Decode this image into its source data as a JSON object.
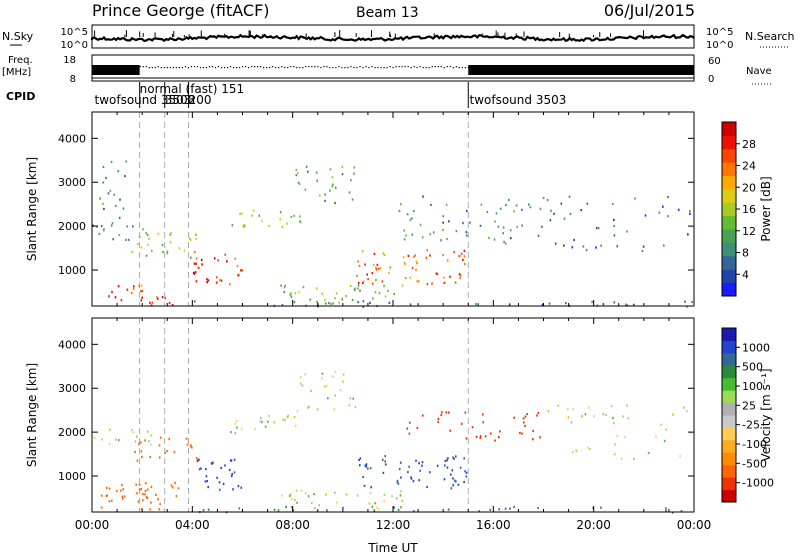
{
  "header": {
    "station": "Prince George (fitACF)",
    "beam": "Beam 13",
    "date": "06/Jul/2015"
  },
  "top_panels": {
    "nsky_label": "N.Sky",
    "nsearch_label": "N.Search",
    "noise_ticks": [
      "10^5",
      "10^0"
    ],
    "noise_ticks_right": [
      "10^5",
      "10^0"
    ],
    "freq_label": "Freq.",
    "freq_unit": "[MHz]",
    "freq_ticks": [
      "18",
      "8"
    ],
    "nave_label": "Nave",
    "nave_ticks": [
      "60",
      "0"
    ],
    "cpid_label": "CPID",
    "cpid_entries": [
      {
        "label": "twofsound 3503",
        "start_h": 0.1,
        "row": 2
      },
      {
        "label": "normal (fast) 151",
        "start_h": 1.9,
        "row": 1
      },
      {
        "label": "3503",
        "start_h": 2.9,
        "row": 2
      },
      {
        "label": "200",
        "start_h": 3.85,
        "row": 2
      },
      {
        "label": "twofsound 3503",
        "start_h": 15.05,
        "row": 2
      }
    ],
    "mode_changes_h": [
      1.9,
      2.9,
      3.85,
      15.0
    ]
  },
  "colors": {
    "power_scale": [
      "#1a1aff",
      "#2244aa",
      "#336699",
      "#3d8f7a",
      "#4aa055",
      "#66bb33",
      "#aacc22",
      "#ddcc11",
      "#ffaa00",
      "#ff7700",
      "#ff4400",
      "#ee1100",
      "#cc0000"
    ],
    "velocity_scale": [
      "#cc0000",
      "#ee3300",
      "#ff6600",
      "#ff8c00",
      "#ffaa22",
      "#ffcc55",
      "#c8c8c8",
      "#b0b0b0",
      "#99dd55",
      "#44bb33",
      "#2d8a3a",
      "#336699",
      "#2244cc",
      "#1a1ab0"
    ]
  },
  "chart_data": [
    {
      "type": "heatmap",
      "parameter": "power",
      "xlabel": "",
      "ylabel": "Slant Range [km]",
      "xlim_hours": [
        0,
        24
      ],
      "ylim_km": [
        180,
        4600
      ],
      "yticks": [
        "1000",
        "2000",
        "3000",
        "4000"
      ],
      "colorbar_label": "Power [dB]",
      "colorbar_ticks": [
        "4",
        "8",
        "12",
        "16",
        "20",
        "24",
        "28"
      ],
      "colorbar_range": [
        0,
        30
      ],
      "scatter_regions": [
        {
          "t0": 0.0,
          "t1": 2.4,
          "r0": 1700,
          "r1": 2100,
          "power": 9,
          "density": 0.7
        },
        {
          "t0": 0.0,
          "t1": 1.5,
          "r0": 2200,
          "r1": 3500,
          "power": 7,
          "density": 0.35
        },
        {
          "t0": 0.3,
          "t1": 2.0,
          "r0": 280,
          "r1": 700,
          "power": 26,
          "density": 0.8
        },
        {
          "t0": 1.5,
          "t1": 3.5,
          "r0": 200,
          "r1": 420,
          "power": 28,
          "density": 0.9
        },
        {
          "t0": 1.5,
          "t1": 4.2,
          "r0": 1300,
          "r1": 1900,
          "power": 15,
          "density": 0.6
        },
        {
          "t0": 4.0,
          "t1": 6.0,
          "r0": 700,
          "r1": 1500,
          "power": 27,
          "density": 0.75
        },
        {
          "t0": 5.5,
          "t1": 8.5,
          "r0": 2000,
          "r1": 2400,
          "power": 14,
          "density": 0.7
        },
        {
          "t0": 8.0,
          "t1": 10.5,
          "r0": 2500,
          "r1": 3400,
          "power": 10,
          "density": 0.5
        },
        {
          "t0": 7.5,
          "t1": 12.5,
          "r0": 250,
          "r1": 700,
          "power": 12,
          "density": 0.65
        },
        {
          "t0": 10.5,
          "t1": 15.0,
          "r0": 700,
          "r1": 1500,
          "power": 24,
          "density": 0.7
        },
        {
          "t0": 12.0,
          "t1": 18.0,
          "r0": 1600,
          "r1": 2700,
          "power": 8,
          "density": 0.35
        },
        {
          "t0": 4.0,
          "t1": 24.0,
          "r0": 190,
          "r1": 320,
          "power": 6,
          "density": 0.5
        },
        {
          "t0": 18.0,
          "t1": 24.0,
          "r0": 1400,
          "r1": 2700,
          "power": 5,
          "density": 0.2
        }
      ]
    },
    {
      "type": "heatmap",
      "parameter": "velocity",
      "xlabel": "Time UT",
      "ylabel": "Slant Range [km]",
      "xlim_hours": [
        0,
        24
      ],
      "ylim_km": [
        180,
        4600
      ],
      "xticks": [
        "00:00",
        "04:00",
        "08:00",
        "12:00",
        "16:00",
        "20:00",
        "00:00"
      ],
      "yticks": [
        "1000",
        "2000",
        "3000",
        "4000"
      ],
      "colorbar_label": "Velocity [m s⁻¹]",
      "colorbar_ticks": [
        "1000",
        "500",
        "100",
        "25",
        "-25",
        "-100",
        "-500",
        "-1000"
      ],
      "scatter_regions": [
        {
          "t0": 0.0,
          "t1": 2.4,
          "r0": 1700,
          "r1": 2100,
          "vel": 0,
          "density": 0.6
        },
        {
          "t0": 0.3,
          "t1": 3.5,
          "r0": 250,
          "r1": 900,
          "vel": -150,
          "density": 0.8
        },
        {
          "t0": 1.5,
          "t1": 4.2,
          "r0": 1300,
          "r1": 1900,
          "vel": -120,
          "density": 0.55
        },
        {
          "t0": 4.0,
          "t1": 6.0,
          "r0": 700,
          "r1": 1500,
          "vel": 300,
          "density": 0.7
        },
        {
          "t0": 5.5,
          "t1": 8.5,
          "r0": 2000,
          "r1": 2400,
          "vel": 0,
          "density": 0.65
        },
        {
          "t0": 8.0,
          "t1": 10.5,
          "r0": 2500,
          "r1": 3400,
          "vel": 0,
          "density": 0.45
        },
        {
          "t0": 7.5,
          "t1": 12.5,
          "r0": 250,
          "r1": 700,
          "vel": 0,
          "density": 0.6
        },
        {
          "t0": 10.5,
          "t1": 15.0,
          "r0": 700,
          "r1": 1500,
          "vel": 200,
          "density": 0.65
        },
        {
          "t0": 12.5,
          "t1": 18.0,
          "r0": 1800,
          "r1": 2500,
          "vel": -400,
          "density": 0.4
        },
        {
          "t0": 4.0,
          "t1": 24.0,
          "r0": 190,
          "r1": 320,
          "vel": 80,
          "density": 0.45
        },
        {
          "t0": 18.0,
          "t1": 24.0,
          "r0": 1400,
          "r1": 2700,
          "vel": 0,
          "density": 0.2
        }
      ]
    }
  ]
}
